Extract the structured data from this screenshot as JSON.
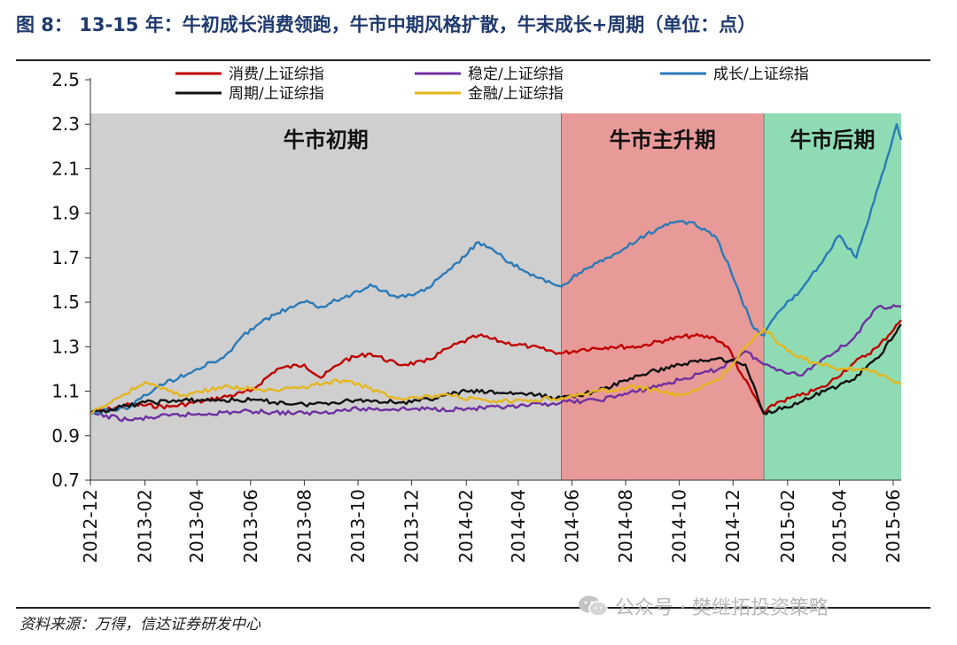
{
  "title": "图 8： 13-15 年：牛初成长消费领跑，牛市中期风格扩散，牛末成长+周期（单位：点）",
  "source": "资料来源：万得，信达证券研发中心",
  "watermark": "公众号 · 樊继拓投资策略",
  "chart_data": {
    "type": "line",
    "title": "13-15 年：牛初成长消费领跑，牛市中期风格扩散，牛末成长+周期",
    "unit": "点",
    "xlabel": "",
    "ylabel": "",
    "ylim": [
      0.7,
      2.5
    ],
    "yticks": [
      0.7,
      0.9,
      1.1,
      1.3,
      1.5,
      1.7,
      1.9,
      2.1,
      2.3,
      2.5
    ],
    "xlim": [
      "2012-12",
      "2015-06-10"
    ],
    "xticks": [
      "2012-12",
      "2013-02",
      "2013-04",
      "2013-06",
      "2013-08",
      "2013-10",
      "2013-12",
      "2014-02",
      "2014-04",
      "2014-06",
      "2014-08",
      "2014-10",
      "2014-12",
      "2015-02",
      "2015-04",
      "2015-06"
    ],
    "legend_position": "top",
    "phases": [
      {
        "label": "牛市初期",
        "start": "2012-12-01",
        "end": "2014-05-20",
        "color": "#cfcfcf"
      },
      {
        "label": "牛市主升期",
        "start": "2014-05-20",
        "end": "2015-01-05",
        "color": "#e89a98"
      },
      {
        "label": "牛市后期",
        "start": "2015-01-05",
        "end": "2015-06-10",
        "color": "#8fdcb4"
      }
    ],
    "series": [
      {
        "name": "消费/上证综指",
        "color": "#c00000",
        "points": [
          [
            "2012-12-01",
            1.0
          ],
          [
            "2013-01-15",
            1.04
          ],
          [
            "2013-03-01",
            1.03
          ],
          [
            "2013-04-15",
            1.06
          ],
          [
            "2013-06-01",
            1.1
          ],
          [
            "2013-07-01",
            1.2
          ],
          [
            "2013-08-01",
            1.22
          ],
          [
            "2013-08-20",
            1.16
          ],
          [
            "2013-09-15",
            1.24
          ],
          [
            "2013-10-15",
            1.27
          ],
          [
            "2013-11-15",
            1.22
          ],
          [
            "2013-12-15",
            1.23
          ],
          [
            "2014-01-15",
            1.3
          ],
          [
            "2014-02-15",
            1.35
          ],
          [
            "2014-03-15",
            1.32
          ],
          [
            "2014-04-15",
            1.3
          ],
          [
            "2014-05-20",
            1.27
          ],
          [
            "2014-06-15",
            1.29
          ],
          [
            "2014-07-15",
            1.3
          ],
          [
            "2014-08-15",
            1.3
          ],
          [
            "2014-09-15",
            1.33
          ],
          [
            "2014-10-15",
            1.35
          ],
          [
            "2014-11-10",
            1.34
          ],
          [
            "2014-11-25",
            1.3
          ],
          [
            "2014-12-10",
            1.18
          ],
          [
            "2014-12-25",
            1.08
          ],
          [
            "2015-01-05",
            1.0
          ],
          [
            "2015-01-20",
            1.05
          ],
          [
            "2015-02-15",
            1.08
          ],
          [
            "2015-03-15",
            1.12
          ],
          [
            "2015-04-15",
            1.22
          ],
          [
            "2015-05-15",
            1.3
          ],
          [
            "2015-06-10",
            1.42
          ]
        ]
      },
      {
        "name": "稳定/上证综指",
        "color": "#7030a0",
        "points": [
          [
            "2012-12-01",
            1.0
          ],
          [
            "2013-01-15",
            0.97
          ],
          [
            "2013-03-01",
            0.99
          ],
          [
            "2013-04-15",
            1.0
          ],
          [
            "2013-06-01",
            1.01
          ],
          [
            "2013-08-01",
            1.0
          ],
          [
            "2013-10-01",
            1.02
          ],
          [
            "2013-12-01",
            1.02
          ],
          [
            "2014-02-01",
            1.02
          ],
          [
            "2014-04-01",
            1.03
          ],
          [
            "2014-05-20",
            1.05
          ],
          [
            "2014-07-01",
            1.06
          ],
          [
            "2014-08-15",
            1.1
          ],
          [
            "2014-10-01",
            1.15
          ],
          [
            "2014-11-15",
            1.2
          ],
          [
            "2014-12-15",
            1.28
          ],
          [
            "2015-01-05",
            1.22
          ],
          [
            "2015-02-15",
            1.17
          ],
          [
            "2015-03-15",
            1.25
          ],
          [
            "2015-04-15",
            1.33
          ],
          [
            "2015-05-15",
            1.48
          ],
          [
            "2015-06-10",
            1.48
          ]
        ]
      },
      {
        "name": "成长/上证综指",
        "color": "#2a7ab8",
        "points": [
          [
            "2012-12-01",
            1.0
          ],
          [
            "2013-01-15",
            1.03
          ],
          [
            "2013-02-15",
            1.12
          ],
          [
            "2013-04-01",
            1.2
          ],
          [
            "2013-05-01",
            1.25
          ],
          [
            "2013-06-01",
            1.38
          ],
          [
            "2013-07-01",
            1.45
          ],
          [
            "2013-08-01",
            1.5
          ],
          [
            "2013-08-20",
            1.48
          ],
          [
            "2013-09-15",
            1.52
          ],
          [
            "2013-10-15",
            1.58
          ],
          [
            "2013-11-15",
            1.52
          ],
          [
            "2013-12-15",
            1.55
          ],
          [
            "2014-01-15",
            1.65
          ],
          [
            "2014-02-15",
            1.77
          ],
          [
            "2014-03-15",
            1.7
          ],
          [
            "2014-04-15",
            1.62
          ],
          [
            "2014-05-20",
            1.57
          ],
          [
            "2014-06-15",
            1.65
          ],
          [
            "2014-07-15",
            1.7
          ],
          [
            "2014-08-15",
            1.78
          ],
          [
            "2014-09-15",
            1.85
          ],
          [
            "2014-10-15",
            1.86
          ],
          [
            "2014-11-10",
            1.8
          ],
          [
            "2014-11-25",
            1.68
          ],
          [
            "2014-12-10",
            1.52
          ],
          [
            "2014-12-25",
            1.38
          ],
          [
            "2015-01-05",
            1.35
          ],
          [
            "2015-01-20",
            1.45
          ],
          [
            "2015-02-15",
            1.55
          ],
          [
            "2015-03-15",
            1.7
          ],
          [
            "2015-04-01",
            1.8
          ],
          [
            "2015-04-20",
            1.7
          ],
          [
            "2015-05-10",
            1.95
          ],
          [
            "2015-05-25",
            2.15
          ],
          [
            "2015-06-05",
            2.3
          ],
          [
            "2015-06-10",
            2.23
          ]
        ]
      },
      {
        "name": "周期/上证综指",
        "color": "#111111",
        "points": [
          [
            "2012-12-01",
            1.0
          ],
          [
            "2013-02-01",
            1.05
          ],
          [
            "2013-04-01",
            1.06
          ],
          [
            "2013-06-01",
            1.06
          ],
          [
            "2013-08-01",
            1.04
          ],
          [
            "2013-10-01",
            1.06
          ],
          [
            "2013-12-01",
            1.05
          ],
          [
            "2014-02-01",
            1.1
          ],
          [
            "2014-04-01",
            1.09
          ],
          [
            "2014-05-20",
            1.07
          ],
          [
            "2014-07-01",
            1.1
          ],
          [
            "2014-08-15",
            1.17
          ],
          [
            "2014-10-01",
            1.22
          ],
          [
            "2014-11-15",
            1.25
          ],
          [
            "2014-12-15",
            1.22
          ],
          [
            "2015-01-05",
            1.0
          ],
          [
            "2015-02-15",
            1.05
          ],
          [
            "2015-03-15",
            1.1
          ],
          [
            "2015-04-15",
            1.15
          ],
          [
            "2015-05-15",
            1.25
          ],
          [
            "2015-06-10",
            1.4
          ]
        ]
      },
      {
        "name": "金融/上证综指",
        "color": "#e5b61e",
        "points": [
          [
            "2012-12-01",
            1.0
          ],
          [
            "2013-02-01",
            1.14
          ],
          [
            "2013-03-15",
            1.08
          ],
          [
            "2013-05-01",
            1.12
          ],
          [
            "2013-07-01",
            1.1
          ],
          [
            "2013-09-15",
            1.15
          ],
          [
            "2013-11-15",
            1.07
          ],
          [
            "2014-01-15",
            1.08
          ],
          [
            "2014-03-01",
            1.05
          ],
          [
            "2014-04-15",
            1.06
          ],
          [
            "2014-05-20",
            1.07
          ],
          [
            "2014-07-01",
            1.1
          ],
          [
            "2014-08-15",
            1.12
          ],
          [
            "2014-10-01",
            1.08
          ],
          [
            "2014-11-15",
            1.15
          ],
          [
            "2014-12-15",
            1.3
          ],
          [
            "2015-01-05",
            1.38
          ],
          [
            "2015-02-01",
            1.28
          ],
          [
            "2015-03-01",
            1.23
          ],
          [
            "2015-04-01",
            1.2
          ],
          [
            "2015-05-01",
            1.2
          ],
          [
            "2015-06-10",
            1.13
          ]
        ]
      }
    ]
  }
}
